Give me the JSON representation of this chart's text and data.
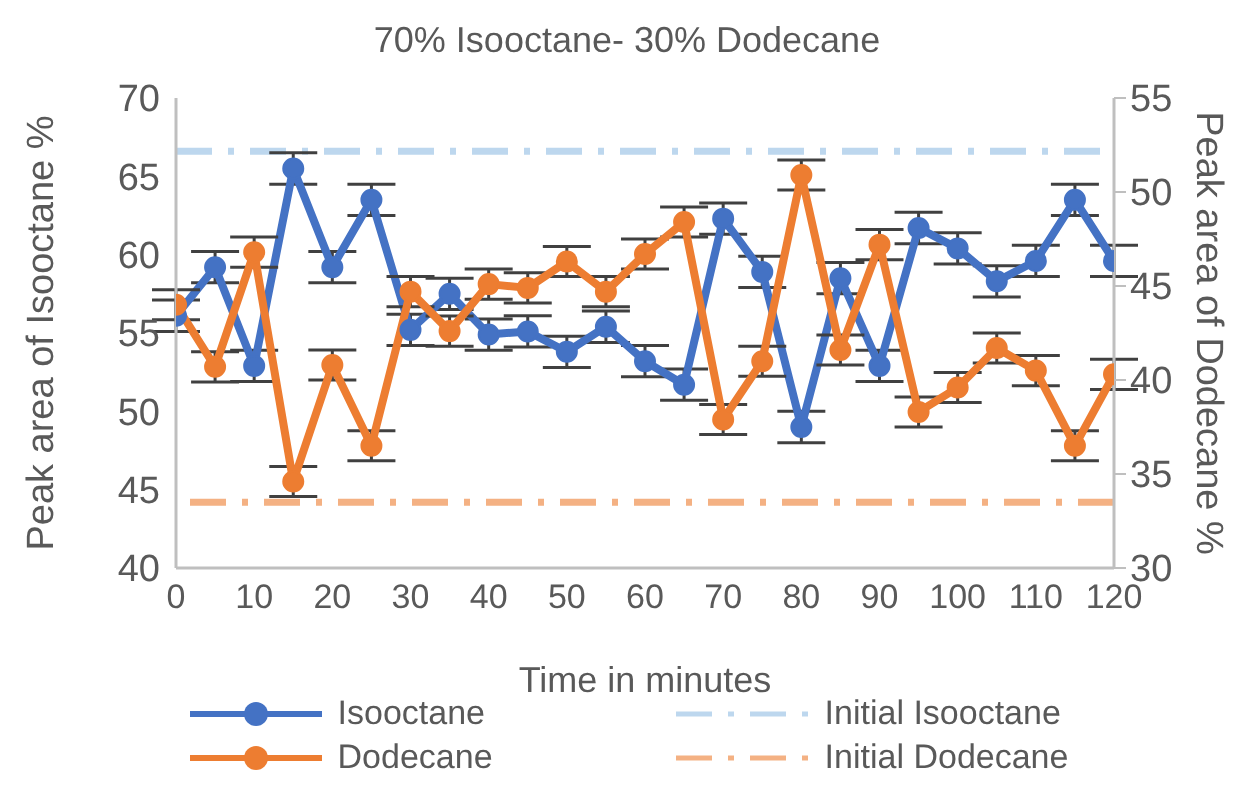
{
  "chart_data": {
    "type": "line",
    "title": "70% Isooctane- 30% Dodecane",
    "xlabel": "Time in minutes",
    "ylabel": "Peak area of Isooctane %",
    "y2label": "Peak area of Dodecane %",
    "x": [
      0,
      5,
      10,
      15,
      20,
      25,
      30,
      35,
      40,
      45,
      50,
      55,
      60,
      65,
      70,
      75,
      80,
      85,
      90,
      95,
      100,
      105,
      110,
      115,
      120
    ],
    "xlim": [
      0,
      120
    ],
    "xticks": [
      0,
      10,
      20,
      30,
      40,
      50,
      60,
      70,
      80,
      90,
      100,
      110,
      120
    ],
    "ylim": [
      40,
      70
    ],
    "yticks": [
      40,
      45,
      50,
      55,
      60,
      65,
      70
    ],
    "y2lim": [
      30,
      55
    ],
    "y2ticks": [
      30,
      35,
      40,
      45,
      50,
      55
    ],
    "grid": false,
    "legend": "bottom",
    "marker": "circle",
    "line_style": "solid",
    "series": [
      {
        "name": "Isooctane",
        "color": "#4472c4",
        "values": [
          56.1,
          59.2,
          52.9,
          65.5,
          59.2,
          63.5,
          55.2,
          57.5,
          54.9,
          55.1,
          53.8,
          55.4,
          53.2,
          51.7,
          62.3,
          58.9,
          49.0,
          58.5,
          52.9,
          61.7,
          60.4,
          58.3,
          59.6,
          63.5,
          59.6
        ],
        "errors": [
          1,
          1,
          1,
          1,
          1,
          1,
          1,
          1,
          1,
          1,
          1,
          1,
          1,
          1,
          1,
          1,
          1,
          1,
          1,
          1,
          1,
          1,
          1,
          1,
          1
        ]
      },
      {
        "name": "Dodecane",
        "color": "#ed7d31",
        "axis": "y2",
        "values": [
          44.0,
          40.7,
          46.8,
          34.6,
          40.8,
          36.5,
          44.7,
          42.6,
          45.1,
          44.9,
          46.3,
          44.7,
          46.7,
          48.4,
          37.9,
          41.0,
          50.9,
          41.6,
          47.2,
          38.3,
          39.6,
          41.7,
          40.5,
          36.5,
          40.3
        ],
        "errors": [
          0.8,
          0.8,
          0.8,
          0.8,
          0.8,
          0.8,
          0.8,
          0.8,
          0.8,
          0.8,
          0.8,
          0.8,
          0.8,
          0.8,
          0.8,
          0.8,
          0.8,
          0.8,
          0.8,
          0.8,
          0.8,
          0.8,
          0.8,
          0.8,
          0.8
        ]
      }
    ],
    "ref_lines": [
      {
        "axis": "y",
        "value": 66.6,
        "label": "Initial Isooctane",
        "color": "#bdd7ee",
        "line_style": "dashed"
      },
      {
        "axis": "y2",
        "value": 33.5,
        "label": "Initial Dodecane",
        "color": "#f4b183",
        "line_style": "dashed"
      }
    ]
  }
}
